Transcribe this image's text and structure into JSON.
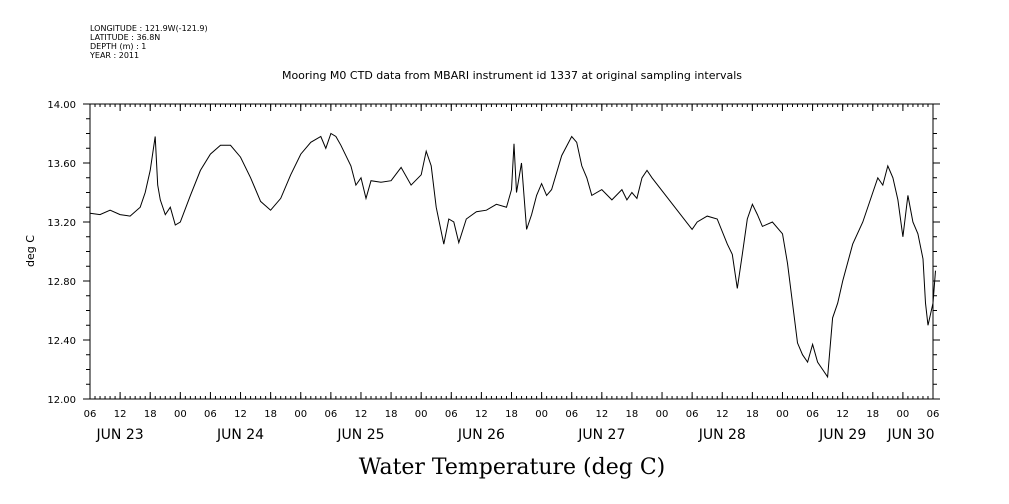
{
  "header": {
    "longitude": "LONGITUDE : 121.9W(-121.9)",
    "latitude": "LATITUDE : 36.8N",
    "depth": "DEPTH (m) : 1",
    "year": "YEAR : 2011"
  },
  "chart_data": {
    "type": "line",
    "title": "Mooring M0 CTD data from MBARI instrument id 1337 at original sampling intervals",
    "xlabel": "Water Temperature (deg C)",
    "ylabel": "deg C",
    "ylim": [
      12.0,
      14.0
    ],
    "yticks": [
      "12.00",
      "12.40",
      "12.80",
      "13.20",
      "13.60",
      "14.00"
    ],
    "xlim": [
      "2011-06-23T06:00",
      "2011-06-30T06:00"
    ],
    "hour_ticks": [
      "06",
      "12",
      "18",
      "00",
      "06",
      "12",
      "18",
      "00",
      "06",
      "12",
      "18",
      "00",
      "06",
      "12",
      "18",
      "00",
      "06",
      "12",
      "18",
      "00",
      "06",
      "12",
      "18",
      "00",
      "06",
      "12",
      "18",
      "00",
      "06"
    ],
    "day_labels": [
      "JUN 23",
      "JUN 24",
      "JUN 25",
      "JUN 26",
      "JUN 27",
      "JUN 28",
      "JUN 29",
      "JUN 30"
    ],
    "grid": false,
    "series": [
      {
        "points": [
          [
            "2011-06-23T06:00",
            13.26
          ],
          [
            "2011-06-23T08:00",
            13.25
          ],
          [
            "2011-06-23T10:00",
            13.28
          ],
          [
            "2011-06-23T12:00",
            13.25
          ],
          [
            "2011-06-23T14:00",
            13.24
          ],
          [
            "2011-06-23T16:00",
            13.3
          ],
          [
            "2011-06-23T17:00",
            13.4
          ],
          [
            "2011-06-23T18:00",
            13.55
          ],
          [
            "2011-06-23T19:00",
            13.78
          ],
          [
            "2011-06-23T19:30",
            13.45
          ],
          [
            "2011-06-23T20:00",
            13.35
          ],
          [
            "2011-06-23T21:00",
            13.25
          ],
          [
            "2011-06-23T22:00",
            13.3
          ],
          [
            "2011-06-23T23:00",
            13.18
          ],
          [
            "2011-06-24T00:00",
            13.2
          ],
          [
            "2011-06-24T02:00",
            13.38
          ],
          [
            "2011-06-24T04:00",
            13.55
          ],
          [
            "2011-06-24T06:00",
            13.66
          ],
          [
            "2011-06-24T08:00",
            13.72
          ],
          [
            "2011-06-24T10:00",
            13.72
          ],
          [
            "2011-06-24T12:00",
            13.64
          ],
          [
            "2011-06-24T14:00",
            13.5
          ],
          [
            "2011-06-24T16:00",
            13.34
          ],
          [
            "2011-06-24T18:00",
            13.28
          ],
          [
            "2011-06-24T20:00",
            13.36
          ],
          [
            "2011-06-24T22:00",
            13.52
          ],
          [
            "2011-06-25T00:00",
            13.66
          ],
          [
            "2011-06-25T02:00",
            13.74
          ],
          [
            "2011-06-25T04:00",
            13.78
          ],
          [
            "2011-06-25T05:00",
            13.7
          ],
          [
            "2011-06-25T06:00",
            13.8
          ],
          [
            "2011-06-25T07:00",
            13.78
          ],
          [
            "2011-06-25T08:00",
            13.72
          ],
          [
            "2011-06-25T10:00",
            13.58
          ],
          [
            "2011-06-25T11:00",
            13.45
          ],
          [
            "2011-06-25T12:00",
            13.5
          ],
          [
            "2011-06-25T13:00",
            13.36
          ],
          [
            "2011-06-25T14:00",
            13.48
          ],
          [
            "2011-06-25T16:00",
            13.47
          ],
          [
            "2011-06-25T18:00",
            13.48
          ],
          [
            "2011-06-25T20:00",
            13.57
          ],
          [
            "2011-06-25T22:00",
            13.45
          ],
          [
            "2011-06-26T00:00",
            13.52
          ],
          [
            "2011-06-26T01:00",
            13.68
          ],
          [
            "2011-06-26T02:00",
            13.58
          ],
          [
            "2011-06-26T03:00",
            13.3
          ],
          [
            "2011-06-26T04:30",
            13.05
          ],
          [
            "2011-06-26T05:30",
            13.22
          ],
          [
            "2011-06-26T06:30",
            13.2
          ],
          [
            "2011-06-26T07:30",
            13.06
          ],
          [
            "2011-06-26T09:00",
            13.22
          ],
          [
            "2011-06-26T11:00",
            13.27
          ],
          [
            "2011-06-26T13:00",
            13.28
          ],
          [
            "2011-06-26T15:00",
            13.32
          ],
          [
            "2011-06-26T17:00",
            13.3
          ],
          [
            "2011-06-26T18:00",
            13.42
          ],
          [
            "2011-06-26T18:30",
            13.73
          ],
          [
            "2011-06-26T19:00",
            13.4
          ],
          [
            "2011-06-26T20:00",
            13.6
          ],
          [
            "2011-06-26T21:00",
            13.15
          ],
          [
            "2011-06-26T22:00",
            13.25
          ],
          [
            "2011-06-26T23:00",
            13.38
          ],
          [
            "2011-06-27T00:00",
            13.46
          ],
          [
            "2011-06-27T01:00",
            13.38
          ],
          [
            "2011-06-27T02:00",
            13.42
          ],
          [
            "2011-06-27T04:00",
            13.65
          ],
          [
            "2011-06-27T06:00",
            13.78
          ],
          [
            "2011-06-27T07:00",
            13.74
          ],
          [
            "2011-06-27T08:00",
            13.58
          ],
          [
            "2011-06-27T09:00",
            13.5
          ],
          [
            "2011-06-27T10:00",
            13.38
          ],
          [
            "2011-06-27T12:00",
            13.42
          ],
          [
            "2011-06-27T14:00",
            13.35
          ],
          [
            "2011-06-27T16:00",
            13.42
          ],
          [
            "2011-06-27T17:00",
            13.35
          ],
          [
            "2011-06-27T18:00",
            13.4
          ],
          [
            "2011-06-27T19:00",
            13.36
          ],
          [
            "2011-06-27T20:00",
            13.5
          ],
          [
            "2011-06-27T21:00",
            13.55
          ],
          [
            "2011-06-27T22:00",
            13.5
          ],
          [
            "2011-06-28T06:00",
            13.15
          ],
          [
            "2011-06-28T07:00",
            13.2
          ],
          [
            "2011-06-28T09:00",
            13.24
          ],
          [
            "2011-06-28T11:00",
            13.22
          ],
          [
            "2011-06-28T13:00",
            13.05
          ],
          [
            "2011-06-28T14:00",
            12.98
          ],
          [
            "2011-06-28T15:00",
            12.75
          ],
          [
            "2011-06-28T16:00",
            12.98
          ],
          [
            "2011-06-28T17:00",
            13.22
          ],
          [
            "2011-06-28T18:00",
            13.32
          ],
          [
            "2011-06-28T19:00",
            13.25
          ],
          [
            "2011-06-28T20:00",
            13.17
          ],
          [
            "2011-06-28T22:00",
            13.2
          ],
          [
            "2011-06-29T00:00",
            13.12
          ],
          [
            "2011-06-29T01:00",
            12.92
          ],
          [
            "2011-06-29T02:00",
            12.65
          ],
          [
            "2011-06-29T03:00",
            12.38
          ],
          [
            "2011-06-29T04:00",
            12.3
          ],
          [
            "2011-06-29T05:00",
            12.25
          ],
          [
            "2011-06-29T06:00",
            12.37
          ],
          [
            "2011-06-29T07:00",
            12.25
          ],
          [
            "2011-06-29T08:00",
            12.2
          ],
          [
            "2011-06-29T09:00",
            12.15
          ],
          [
            "2011-06-29T10:00",
            12.55
          ],
          [
            "2011-06-29T11:00",
            12.65
          ],
          [
            "2011-06-29T12:00",
            12.8
          ],
          [
            "2011-06-29T14:00",
            13.05
          ],
          [
            "2011-06-29T16:00",
            13.2
          ],
          [
            "2011-06-29T18:00",
            13.4
          ],
          [
            "2011-06-29T19:00",
            13.5
          ],
          [
            "2011-06-29T20:00",
            13.45
          ],
          [
            "2011-06-29T21:00",
            13.58
          ],
          [
            "2011-06-29T22:00",
            13.5
          ],
          [
            "2011-06-29T23:00",
            13.35
          ],
          [
            "2011-06-30T00:00",
            13.1
          ],
          [
            "2011-06-30T01:00",
            13.38
          ],
          [
            "2011-06-30T02:00",
            13.2
          ],
          [
            "2011-06-30T03:00",
            13.12
          ],
          [
            "2011-06-30T04:00",
            12.95
          ],
          [
            "2011-06-30T04:30",
            12.65
          ],
          [
            "2011-06-30T05:00",
            12.5
          ],
          [
            "2011-06-30T06:00",
            12.65
          ],
          [
            "2011-06-30T06:30",
            12.87
          ]
        ]
      }
    ]
  }
}
